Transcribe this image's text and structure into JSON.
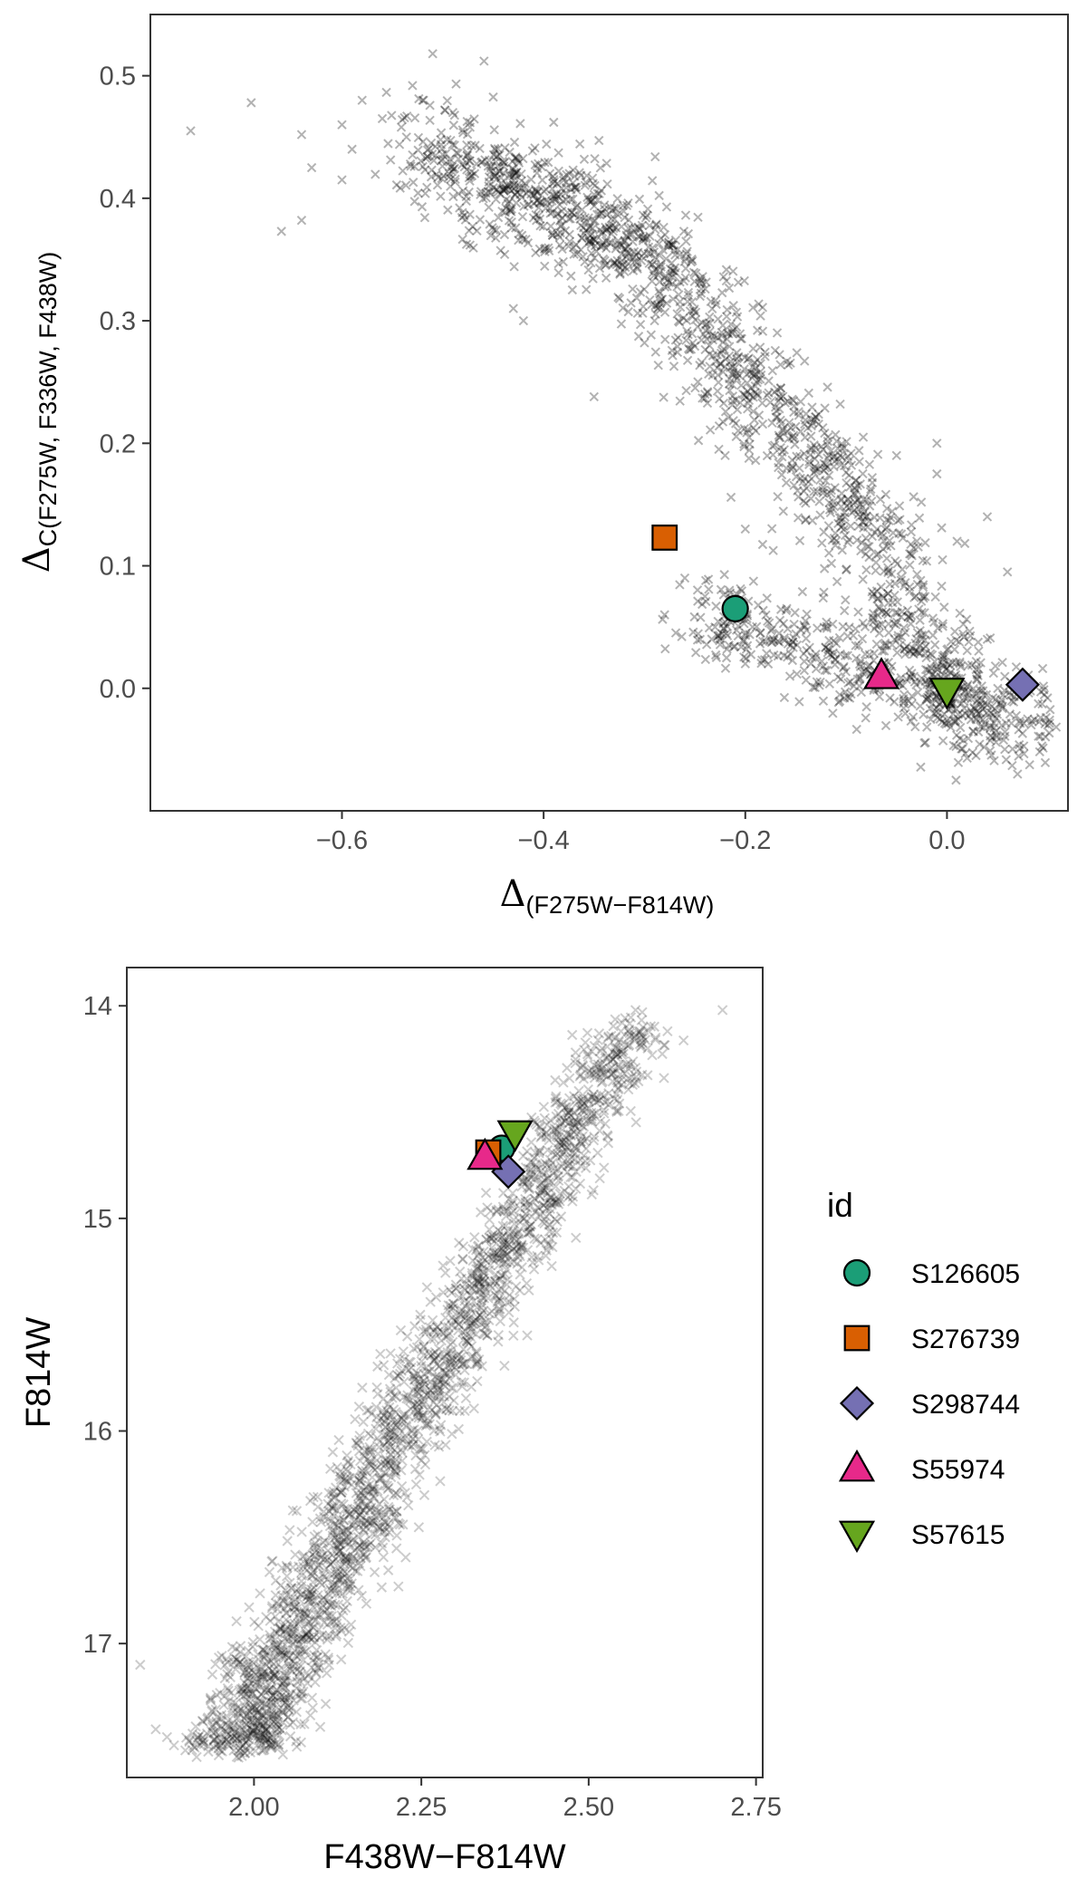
{
  "colors": {
    "S126605": "#1b9e77",
    "S276739": "#d95f02",
    "S298744": "#7570b3",
    "S55974": "#e7298a",
    "S57615": "#66a61e",
    "background_points": "#000000"
  },
  "legend": {
    "title": "id",
    "position": "right",
    "entries": [
      {
        "id": "S126605",
        "shape": "circle"
      },
      {
        "id": "S276739",
        "shape": "square"
      },
      {
        "id": "S298744",
        "shape": "diamond"
      },
      {
        "id": "S55974",
        "shape": "triangle-up"
      },
      {
        "id": "S57615",
        "shape": "triangle-down"
      }
    ]
  },
  "chart_data": [
    {
      "type": "scatter",
      "title": "",
      "xlabel_main": "Δ",
      "xlabel_sub": "(F275W−F814W)",
      "ylabel_main": "Δ",
      "ylabel_sub": "C(F275W, F336W, F438W)",
      "xlim": [
        -0.79,
        0.12
      ],
      "ylim": [
        -0.1,
        0.55
      ],
      "x_ticks": [
        -0.6,
        -0.4,
        -0.2,
        0.0
      ],
      "x_tick_labels": [
        "−0.6",
        "−0.4",
        "−0.2",
        "0.0"
      ],
      "y_ticks": [
        0.0,
        0.1,
        0.2,
        0.3,
        0.4,
        0.5
      ],
      "y_tick_labels": [
        "0.0",
        "0.1",
        "0.2",
        "0.3",
        "0.4",
        "0.5"
      ],
      "grid": false,
      "background": {
        "marker": "x",
        "opacity": 0.3,
        "description_points": [
          {
            "x": -0.75,
            "y": 0.455
          },
          {
            "x": -0.69,
            "y": 0.478
          },
          {
            "x": -0.66,
            "y": 0.373
          },
          {
            "x": -0.64,
            "y": 0.382
          },
          {
            "x": -0.64,
            "y": 0.452
          },
          {
            "x": -0.63,
            "y": 0.425
          },
          {
            "x": -0.6,
            "y": 0.46
          },
          {
            "x": -0.6,
            "y": 0.415
          },
          {
            "x": -0.58,
            "y": 0.48
          },
          {
            "x": -0.59,
            "y": 0.44
          },
          {
            "x": -0.56,
            "y": 0.465
          },
          {
            "x": -0.52,
            "y": 0.48
          },
          {
            "x": -0.53,
            "y": 0.492
          },
          {
            "x": -0.51,
            "y": 0.518
          },
          {
            "x": -0.49,
            "y": 0.47
          },
          {
            "x": -0.42,
            "y": 0.3
          },
          {
            "x": -0.43,
            "y": 0.31
          },
          {
            "x": -0.39,
            "y": 0.462
          },
          {
            "x": -0.35,
            "y": 0.238
          },
          {
            "x": -0.29,
            "y": 0.3
          },
          {
            "x": -0.3,
            "y": 0.282
          },
          {
            "x": -0.24,
            "y": 0.24
          },
          {
            "x": -0.22,
            "y": 0.19
          },
          {
            "x": -0.2,
            "y": 0.13
          },
          {
            "x": -0.26,
            "y": 0.09
          },
          {
            "x": -0.24,
            "y": 0.075
          },
          {
            "x": -0.28,
            "y": 0.06
          },
          {
            "x": -0.23,
            "y": 0.05
          },
          {
            "x": -0.05,
            "y": 0.19
          },
          {
            "x": -0.01,
            "y": 0.2
          },
          {
            "x": -0.01,
            "y": 0.175
          },
          {
            "x": 0.04,
            "y": 0.14
          },
          {
            "x": 0.01,
            "y": 0.12
          },
          {
            "x": 0.06,
            "y": 0.095
          },
          {
            "x": 0.04,
            "y": 0.04
          },
          {
            "x": 0.08,
            "y": -0.025
          },
          {
            "x": 0.1,
            "y": -0.03
          },
          {
            "x": 0.02,
            "y": -0.057
          },
          {
            "x": 0.07,
            "y": -0.07
          },
          {
            "x": -0.2,
            "y": 0.02
          }
        ]
      },
      "highlighted": [
        {
          "id": "S126605",
          "x": -0.21,
          "y": 0.065
        },
        {
          "id": "S276739",
          "x": -0.28,
          "y": 0.123
        },
        {
          "id": "S298744",
          "x": 0.075,
          "y": 0.003
        },
        {
          "id": "S55974",
          "x": -0.065,
          "y": 0.01
        },
        {
          "id": "S57615",
          "x": 0.0,
          "y": -0.002
        }
      ]
    },
    {
      "type": "scatter",
      "title": "",
      "xlabel": "F438W−F814W",
      "ylabel": "F814W",
      "xlim": [
        1.81,
        2.76
      ],
      "ylim_reversed": [
        17.63,
        13.82
      ],
      "y_axis_reversed": true,
      "x_ticks": [
        2.0,
        2.25,
        2.5,
        2.75
      ],
      "x_tick_labels": [
        "2.00",
        "2.25",
        "2.50",
        "2.75"
      ],
      "y_ticks": [
        14,
        15,
        16,
        17
      ],
      "y_tick_labels": [
        "14",
        "15",
        "16",
        "17"
      ],
      "grid": false,
      "background": {
        "marker": "x",
        "opacity": 0.2,
        "description_points": [
          {
            "x": 2.7,
            "y": 14.02
          },
          {
            "x": 2.58,
            "y": 14.03
          },
          {
            "x": 2.57,
            "y": 14.02
          },
          {
            "x": 2.55,
            "y": 14.08
          },
          {
            "x": 2.6,
            "y": 14.15
          },
          {
            "x": 2.52,
            "y": 14.2
          },
          {
            "x": 2.48,
            "y": 14.27
          },
          {
            "x": 2.45,
            "y": 14.35
          },
          {
            "x": 2.5,
            "y": 14.45
          },
          {
            "x": 2.46,
            "y": 14.55
          },
          {
            "x": 2.42,
            "y": 14.55
          },
          {
            "x": 2.48,
            "y": 14.72
          },
          {
            "x": 2.4,
            "y": 14.85
          },
          {
            "x": 2.42,
            "y": 14.97
          },
          {
            "x": 1.83,
            "y": 17.1
          },
          {
            "x": 1.87,
            "y": 17.44
          },
          {
            "x": 2.02,
            "y": 17.45
          },
          {
            "x": 2.07,
            "y": 17.38
          }
        ]
      },
      "highlighted": [
        {
          "id": "S126605",
          "x": 2.37,
          "y": 14.67
        },
        {
          "id": "S276739",
          "x": 2.35,
          "y": 14.69
        },
        {
          "id": "S298744",
          "x": 2.38,
          "y": 14.78
        },
        {
          "id": "S55974",
          "x": 2.345,
          "y": 14.71
        },
        {
          "id": "S57615",
          "x": 2.39,
          "y": 14.6
        }
      ]
    }
  ]
}
